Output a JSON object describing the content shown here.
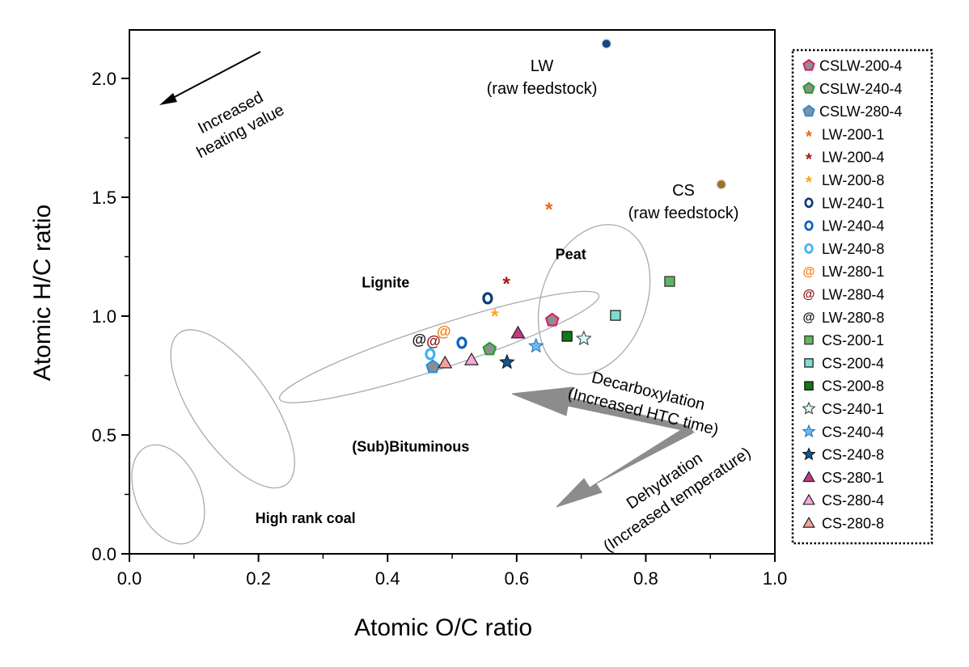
{
  "chart_data": {
    "type": "scatter",
    "title": "",
    "xlabel": "Atomic O/C ratio",
    "ylabel": "Atomic H/C ratio",
    "xlim": [
      0.0,
      1.0
    ],
    "ylim": [
      0.0,
      2.2
    ],
    "xticks": [
      "0.0",
      "0.2",
      "0.4",
      "0.6",
      "0.8",
      "1.0"
    ],
    "yticks": [
      "0.0",
      "0.5",
      "1.0",
      "1.5",
      "2.0"
    ],
    "xtick_values": [
      0.0,
      0.2,
      0.4,
      0.6,
      0.8,
      1.0
    ],
    "ytick_values": [
      0.0,
      0.5,
      1.0,
      1.5,
      2.0
    ],
    "grid": false,
    "legend_position": "right-outside",
    "raw_feedstock": [
      {
        "name": "LW",
        "label_line1": "LW",
        "label_line2": "(raw feedstock)",
        "x": 0.739,
        "y": 2.146,
        "color": "#0d4a86"
      },
      {
        "name": "CS",
        "label_line1": "CS",
        "label_line2": "(raw feedstock)",
        "x": 0.917,
        "y": 1.554,
        "color": "#9a7224"
      }
    ],
    "series": [
      {
        "name": "CSLW-200-4",
        "marker": "pentagon",
        "fill": "#8e8e8e",
        "stroke": "#d6246e",
        "x": 0.655,
        "y": 0.983
      },
      {
        "name": "CSLW-240-4",
        "marker": "pentagon",
        "fill": "#8e8e8e",
        "stroke": "#22a02a",
        "x": 0.558,
        "y": 0.861
      },
      {
        "name": "CSLW-280-4",
        "marker": "pentagon",
        "fill": "#8e8e8e",
        "stroke": "#2a8fe0",
        "x": 0.47,
        "y": 0.786
      },
      {
        "name": "LW-200-1",
        "marker": "asterisk",
        "fill": "#f2661b",
        "stroke": "#f2661b",
        "x": 0.65,
        "y": 1.459
      },
      {
        "name": "LW-200-4",
        "marker": "asterisk",
        "fill": "#a8170f",
        "stroke": "#a8170f",
        "x": 0.584,
        "y": 1.146
      },
      {
        "name": "LW-200-8",
        "marker": "asterisk",
        "fill": "#fba51d",
        "stroke": "#fba51d",
        "x": 0.566,
        "y": 1.01
      },
      {
        "name": "LW-240-1",
        "marker": "o",
        "fill": "#0b3d78",
        "stroke": "#0b3d78",
        "x": 0.555,
        "y": 1.075
      },
      {
        "name": "LW-240-4",
        "marker": "o",
        "fill": "#1063b8",
        "stroke": "#1063b8",
        "x": 0.515,
        "y": 0.888
      },
      {
        "name": "LW-240-8",
        "marker": "o",
        "fill": "#3db3f0",
        "stroke": "#3db3f0",
        "x": 0.466,
        "y": 0.84
      },
      {
        "name": "LW-280-1",
        "marker": "at",
        "fill": "#f27d14",
        "stroke": "#f27d14",
        "x": 0.487,
        "y": 0.935
      },
      {
        "name": "LW-280-4",
        "marker": "at",
        "fill": "#8a1414",
        "stroke": "#8a1414",
        "x": 0.471,
        "y": 0.895
      },
      {
        "name": "LW-280-8",
        "marker": "at",
        "fill": "#111111",
        "stroke": "#111111",
        "x": 0.449,
        "y": 0.901
      },
      {
        "name": "CS-200-1",
        "marker": "square",
        "fill": "#5fb65f",
        "stroke": "#333333",
        "x": 0.837,
        "y": 1.146
      },
      {
        "name": "CS-200-4",
        "marker": "square",
        "fill": "#7fdcd0",
        "stroke": "#222222",
        "x": 0.753,
        "y": 1.003
      },
      {
        "name": "CS-200-8",
        "marker": "square",
        "fill": "#0f7a17",
        "stroke": "#111111",
        "x": 0.678,
        "y": 0.915
      },
      {
        "name": "CS-240-1",
        "marker": "star",
        "fill": "#d9fbfb",
        "stroke": "#333333",
        "x": 0.704,
        "y": 0.905
      },
      {
        "name": "CS-240-4",
        "marker": "star",
        "fill": "#6fb8ea",
        "stroke": "#1e6fb4",
        "x": 0.63,
        "y": 0.874
      },
      {
        "name": "CS-240-8",
        "marker": "star",
        "fill": "#125694",
        "stroke": "#111111",
        "x": 0.585,
        "y": 0.806
      },
      {
        "name": "CS-280-1",
        "marker": "triangle",
        "fill": "#c23b82",
        "stroke": "#222222",
        "x": 0.602,
        "y": 0.929
      },
      {
        "name": "CS-280-4",
        "marker": "triangle",
        "fill": "#f7a9d9",
        "stroke": "#222222",
        "x": 0.53,
        "y": 0.816
      },
      {
        "name": "CS-280-8",
        "marker": "triangle",
        "fill": "#f5a29a",
        "stroke": "#222222",
        "x": 0.489,
        "y": 0.803
      }
    ],
    "regions": [
      {
        "name": "Peat",
        "cx": 0.72,
        "cy": 1.07,
        "rx": 0.12,
        "ry": 0.22,
        "rotate_deg": -70
      },
      {
        "name": "Lignite",
        "cx": 0.48,
        "cy": 0.87,
        "rx": 0.26,
        "ry": 0.09,
        "rotate_deg": -18
      },
      {
        "name": "(Sub)Bituminous",
        "cx": 0.16,
        "cy": 0.61,
        "rx": 0.06,
        "ry": 0.39,
        "rotate_deg": -35
      },
      {
        "name": "High rank coal",
        "cx": 0.06,
        "cy": 0.25,
        "rx": 0.05,
        "ry": 0.22,
        "rotate_deg": -24
      }
    ],
    "region_labels": [
      {
        "text": "Peat",
        "x": 0.66,
        "y": 1.24
      },
      {
        "text": "Lignite",
        "x": 0.36,
        "y": 1.12
      },
      {
        "text": "(Sub)Bituminous",
        "x": 0.345,
        "y": 0.43
      },
      {
        "text": "High rank coal",
        "x": 0.195,
        "y": 0.13
      }
    ],
    "annotations": {
      "heating_value": {
        "line1": "Increased",
        "line2": "heating value"
      },
      "decarboxylation": {
        "line1": "Decarboxylation",
        "line2": "(Increased HTC time)"
      },
      "dehydration": {
        "line1": "Dehydration",
        "line2": "(Increased temperature)"
      }
    }
  }
}
